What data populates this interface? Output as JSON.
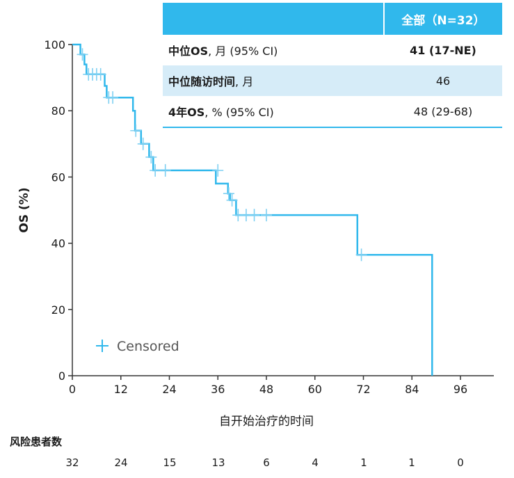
{
  "chart_data": {
    "type": "line",
    "subtype": "kaplan-meier",
    "xlabel": "自开始治疗的时间",
    "ylabel": "OS (%)",
    "xlim": [
      0,
      96
    ],
    "ylim": [
      0,
      100
    ],
    "xticks": [
      0,
      12,
      24,
      36,
      48,
      60,
      72,
      84,
      96
    ],
    "yticks": [
      0,
      20,
      40,
      60,
      80,
      100
    ],
    "color": "#30b8ec",
    "legend": {
      "label": "Censored",
      "marker": "+",
      "position": "bottom-left"
    },
    "grid": false,
    "series": [
      {
        "name": "OS",
        "step_points": [
          [
            0,
            100
          ],
          [
            2,
            100
          ],
          [
            2,
            97
          ],
          [
            3,
            97
          ],
          [
            3,
            94
          ],
          [
            3.5,
            94
          ],
          [
            3.5,
            91
          ],
          [
            8,
            91
          ],
          [
            8,
            87.5
          ],
          [
            8.5,
            87.5
          ],
          [
            8.5,
            84
          ],
          [
            15,
            84
          ],
          [
            15,
            80
          ],
          [
            15.5,
            80
          ],
          [
            15.5,
            74
          ],
          [
            17,
            74
          ],
          [
            17,
            70
          ],
          [
            19,
            70
          ],
          [
            19,
            66
          ],
          [
            20,
            66
          ],
          [
            20,
            62
          ],
          [
            35.5,
            62
          ],
          [
            35.5,
            58
          ],
          [
            38.5,
            58
          ],
          [
            38.5,
            55
          ],
          [
            39,
            55
          ],
          [
            39,
            53
          ],
          [
            40.5,
            53
          ],
          [
            40.5,
            48.5
          ],
          [
            70.5,
            48.5
          ],
          [
            70.5,
            36.5
          ],
          [
            89,
            36.5
          ],
          [
            89,
            0
          ]
        ],
        "censored": [
          [
            2.5,
            97
          ],
          [
            4,
            91
          ],
          [
            5,
            91
          ],
          [
            6,
            91
          ],
          [
            7,
            91
          ],
          [
            9,
            84
          ],
          [
            10,
            84
          ],
          [
            15.7,
            74
          ],
          [
            17.5,
            70
          ],
          [
            19.5,
            66
          ],
          [
            20.5,
            62
          ],
          [
            23,
            62
          ],
          [
            36,
            62
          ],
          [
            38.7,
            55
          ],
          [
            39.5,
            53
          ],
          [
            41,
            48.5
          ],
          [
            43,
            48.5
          ],
          [
            45,
            48.5
          ],
          [
            48,
            48.5
          ],
          [
            71.5,
            36.5
          ]
        ]
      }
    ]
  },
  "table": {
    "header_value": "全部（N=32）",
    "rows": [
      {
        "label_bold": "中位OS",
        "label_rest": ", 月 (95% CI)",
        "value": "41 (17-NE)"
      },
      {
        "label_bold": "中位随访时间",
        "label_rest": ", 月",
        "value": "46"
      },
      {
        "label_bold": "4年OS",
        "label_rest": ", % (95% CI)",
        "value": "48 (29-68)"
      }
    ]
  },
  "risk_table": {
    "title": "风险患者数",
    "values": [
      "32",
      "24",
      "15",
      "13",
      "6",
      "4",
      "1",
      "1",
      "0"
    ]
  }
}
